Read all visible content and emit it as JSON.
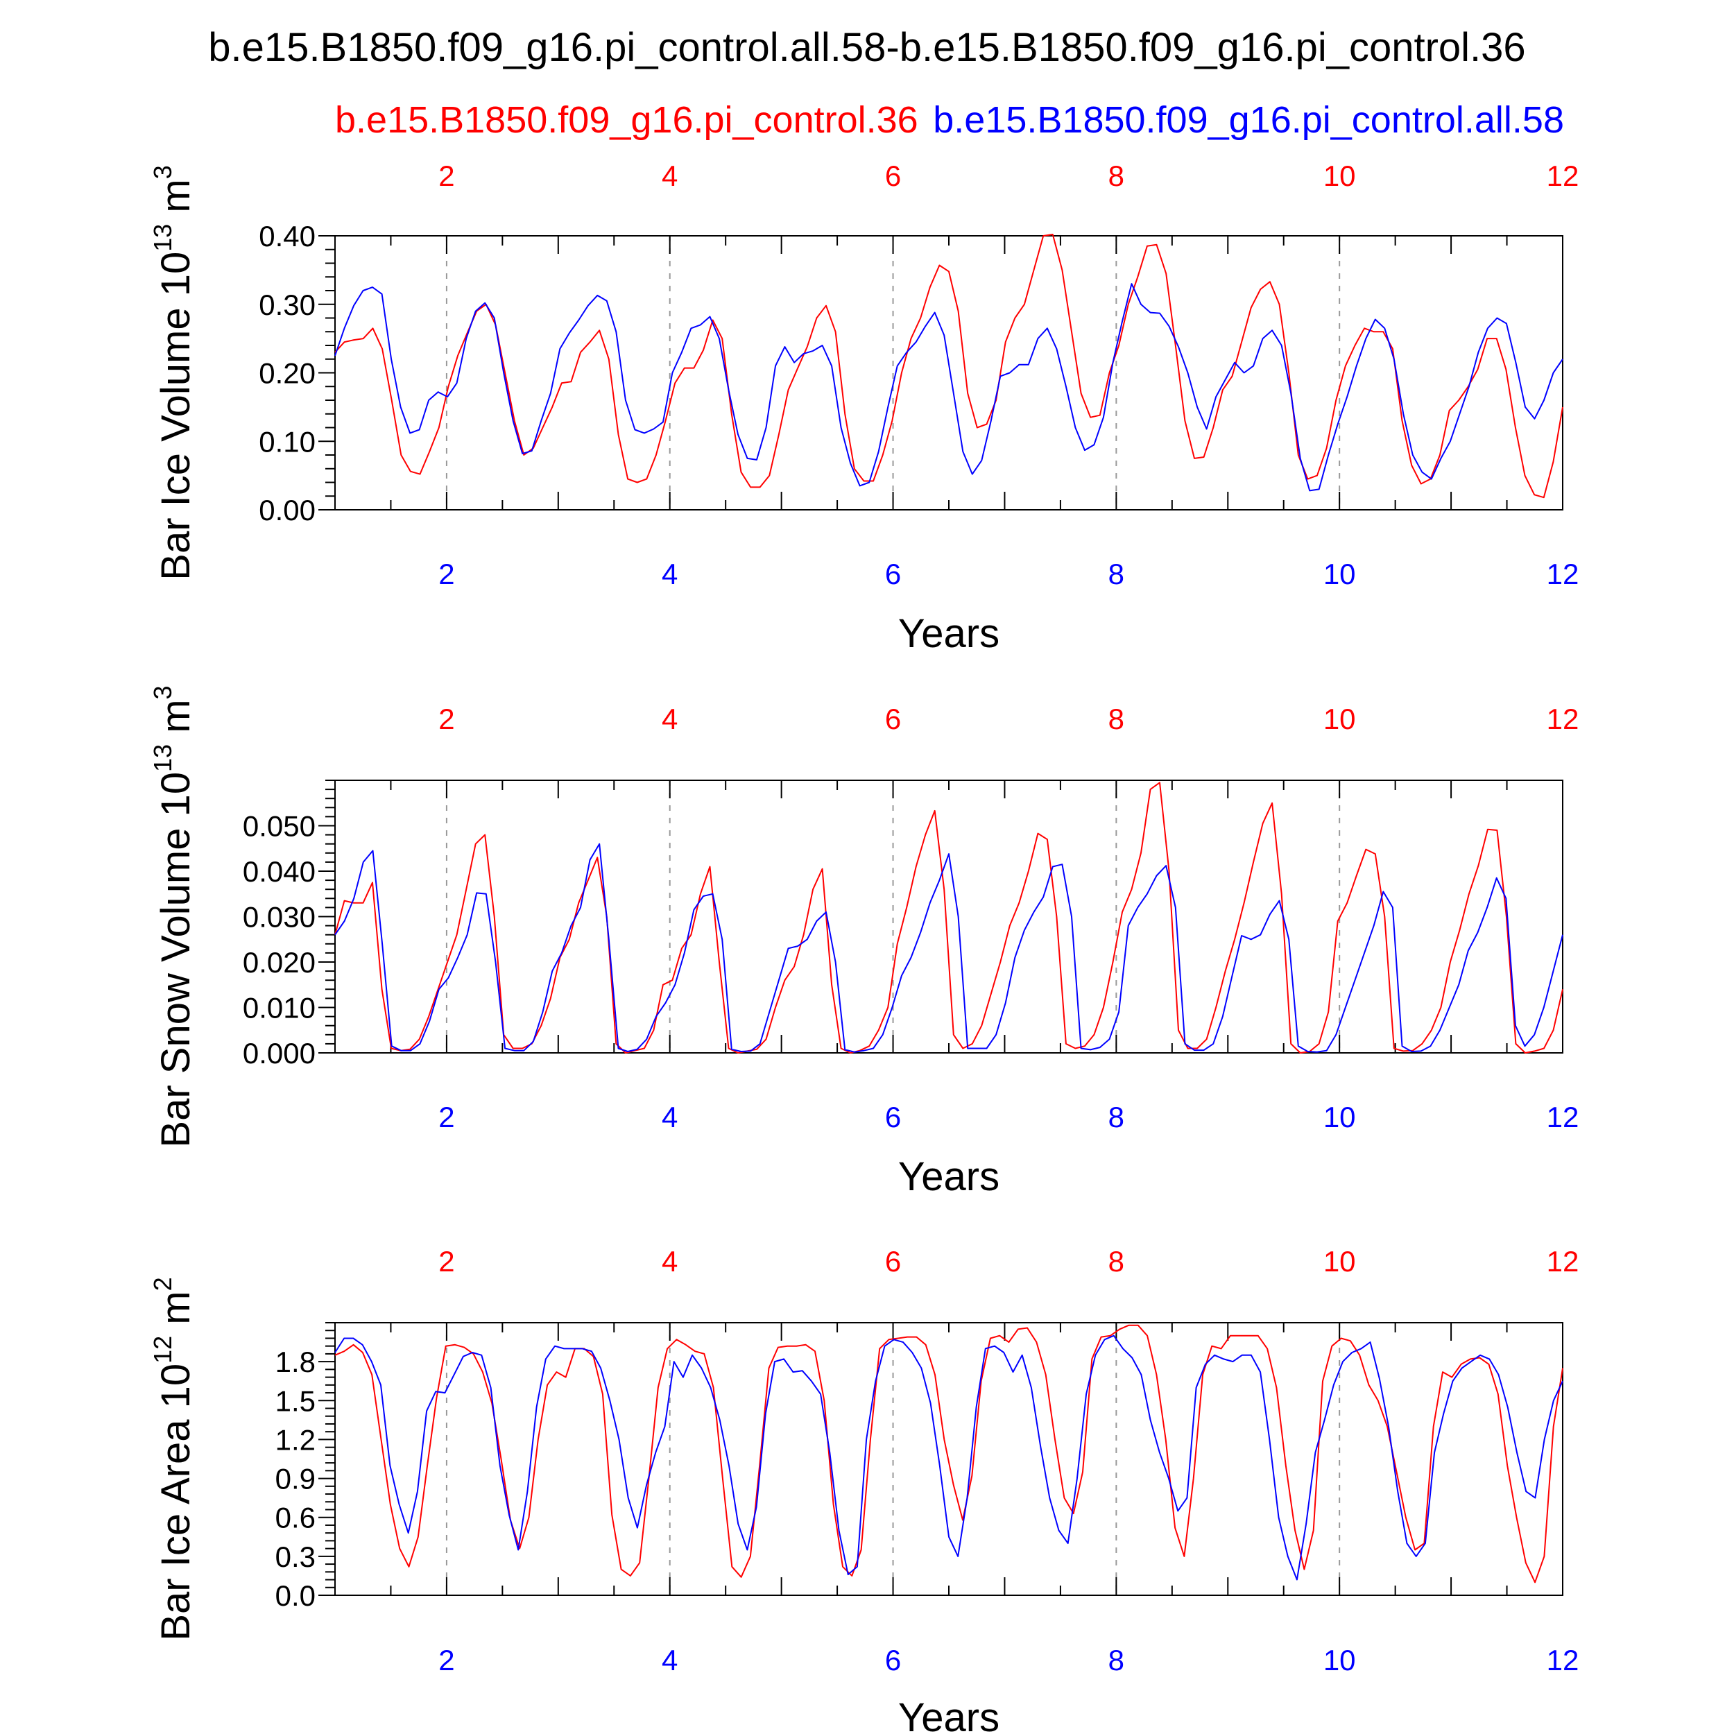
{
  "main_title": "b.e15.B1850.f09_g16.pi_control.all.58-b.e15.B1850.f09_g16.pi_control.36",
  "legend": {
    "red_label": "b.e15.B1850.f09_g16.pi_control.36",
    "blue_label": "b.e15.B1850.f09_g16.pi_control.all.58",
    "red_color": "#ff0000",
    "blue_color": "#0000ff"
  },
  "chart_data": [
    {
      "type": "line",
      "ylabel": "Bar Ice Volume 10",
      "ylabel_exp": "13",
      "ylabel_unit": " m",
      "ylabel_unit_exp": "3",
      "xlabel": "Years",
      "xlim": [
        1,
        12
      ],
      "ylim": [
        0,
        0.4
      ],
      "yticks": [
        0,
        0.1,
        0.2,
        0.3,
        0.4
      ],
      "ytick_labels": [
        "0.00",
        "0.10",
        "0.20",
        "0.30",
        "0.40"
      ],
      "xticks": [
        2,
        4,
        6,
        8,
        10,
        12
      ],
      "xtick_labels": [
        "2",
        "4",
        "6",
        "8",
        "10",
        "12"
      ],
      "series": [
        {
          "name": "b.e15.B1850.f09_g16.pi_control.36",
          "color": "#ff0000",
          "values": [
            0.23,
            0.245,
            0.248,
            0.25,
            0.265,
            0.235,
            0.16,
            0.08,
            0.056,
            0.052,
            0.085,
            0.12,
            0.18,
            0.225,
            0.258,
            0.29,
            0.3,
            0.27,
            0.2,
            0.13,
            0.08,
            0.09,
            0.12,
            0.15,
            0.185,
            0.187,
            0.23,
            0.245,
            0.262,
            0.22,
            0.11,
            0.045,
            0.04,
            0.045,
            0.08,
            0.13,
            0.185,
            0.207,
            0.207,
            0.233,
            0.277,
            0.25,
            0.14,
            0.055,
            0.033,
            0.033,
            0.05,
            0.11,
            0.175,
            0.207,
            0.238,
            0.28,
            0.298,
            0.26,
            0.14,
            0.06,
            0.042,
            0.042,
            0.08,
            0.13,
            0.2,
            0.25,
            0.28,
            0.325,
            0.357,
            0.348,
            0.29,
            0.17,
            0.12,
            0.125,
            0.16,
            0.245,
            0.28,
            0.3,
            0.35,
            0.4,
            0.402,
            0.35,
            0.26,
            0.17,
            0.135,
            0.138,
            0.2,
            0.24,
            0.3,
            0.34,
            0.385,
            0.387,
            0.345,
            0.24,
            0.13,
            0.075,
            0.077,
            0.12,
            0.175,
            0.195,
            0.245,
            0.295,
            0.322,
            0.333,
            0.3,
            0.2,
            0.08,
            0.045,
            0.05,
            0.09,
            0.16,
            0.21,
            0.24,
            0.265,
            0.26,
            0.26,
            0.235,
            0.13,
            0.065,
            0.038,
            0.045,
            0.08,
            0.145,
            0.16,
            0.18,
            0.205,
            0.25,
            0.25,
            0.205,
            0.12,
            0.05,
            0.022,
            0.018,
            0.07,
            0.15
          ]
        },
        {
          "name": "b.e15.B1850.f09_g16.pi_control.all.58",
          "color": "#0000ff",
          "values": [
            0.225,
            0.265,
            0.298,
            0.32,
            0.325,
            0.315,
            0.22,
            0.15,
            0.112,
            0.117,
            0.16,
            0.172,
            0.165,
            0.185,
            0.25,
            0.29,
            0.302,
            0.28,
            0.2,
            0.13,
            0.082,
            0.086,
            0.13,
            0.17,
            0.235,
            0.258,
            0.277,
            0.298,
            0.313,
            0.305,
            0.26,
            0.16,
            0.117,
            0.112,
            0.118,
            0.128,
            0.2,
            0.23,
            0.265,
            0.27,
            0.282,
            0.25,
            0.175,
            0.11,
            0.075,
            0.073,
            0.12,
            0.21,
            0.238,
            0.215,
            0.228,
            0.232,
            0.24,
            0.21,
            0.12,
            0.068,
            0.035,
            0.04,
            0.085,
            0.15,
            0.21,
            0.23,
            0.245,
            0.268,
            0.288,
            0.255,
            0.17,
            0.085,
            0.052,
            0.072,
            0.13,
            0.195,
            0.2,
            0.212,
            0.212,
            0.25,
            0.265,
            0.235,
            0.18,
            0.12,
            0.087,
            0.095,
            0.135,
            0.215,
            0.275,
            0.33,
            0.3,
            0.288,
            0.287,
            0.268,
            0.238,
            0.2,
            0.15,
            0.118,
            0.165,
            0.19,
            0.215,
            0.2,
            0.21,
            0.25,
            0.262,
            0.24,
            0.17,
            0.075,
            0.028,
            0.03,
            0.08,
            0.125,
            0.165,
            0.21,
            0.25,
            0.278,
            0.265,
            0.22,
            0.14,
            0.08,
            0.055,
            0.045,
            0.075,
            0.1,
            0.14,
            0.18,
            0.23,
            0.265,
            0.28,
            0.272,
            0.215,
            0.15,
            0.133,
            0.16,
            0.2,
            0.22
          ]
        }
      ]
    },
    {
      "type": "line",
      "ylabel": "Bar Snow Volume 10",
      "ylabel_exp": "13",
      "ylabel_unit": " m",
      "ylabel_unit_exp": "3",
      "xlabel": "Years",
      "xlim": [
        1,
        12
      ],
      "ylim": [
        0,
        0.06
      ],
      "yticks": [
        0,
        0.01,
        0.02,
        0.03,
        0.04,
        0.05
      ],
      "ytick_labels": [
        "0.000",
        "0.010",
        "0.020",
        "0.030",
        "0.040",
        "0.050"
      ],
      "xticks": [
        2,
        4,
        6,
        8,
        10,
        12
      ],
      "xtick_labels": [
        "2",
        "4",
        "6",
        "8",
        "10",
        "12"
      ],
      "series": [
        {
          "name": "b.e15.B1850.f09_g16.pi_control.36",
          "color": "#ff0000",
          "values": [
            0.026,
            0.0335,
            0.033,
            0.033,
            0.0375,
            0.014,
            0.001,
            0.0005,
            0.0008,
            0.003,
            0.008,
            0.014,
            0.02,
            0.026,
            0.036,
            0.046,
            0.048,
            0.03,
            0.004,
            0.001,
            0.001,
            0.002,
            0.006,
            0.012,
            0.021,
            0.025,
            0.033,
            0.038,
            0.043,
            0.03,
            0.002,
            0.0,
            0.0005,
            0.001,
            0.005,
            0.015,
            0.016,
            0.023,
            0.026,
            0.035,
            0.041,
            0.02,
            0.001,
            0.0,
            0.0004,
            0.0008,
            0.003,
            0.01,
            0.016,
            0.019,
            0.026,
            0.036,
            0.0405,
            0.015,
            0.001,
            0.0,
            0.0005,
            0.0015,
            0.005,
            0.01,
            0.024,
            0.032,
            0.041,
            0.048,
            0.0533,
            0.036,
            0.004,
            0.001,
            0.002,
            0.006,
            0.013,
            0.02,
            0.028,
            0.033,
            0.04,
            0.0483,
            0.047,
            0.03,
            0.002,
            0.001,
            0.0015,
            0.004,
            0.01,
            0.02,
            0.031,
            0.036,
            0.044,
            0.058,
            0.0595,
            0.04,
            0.005,
            0.001,
            0.001,
            0.003,
            0.01,
            0.018,
            0.025,
            0.033,
            0.042,
            0.0505,
            0.055,
            0.035,
            0.002,
            0.0,
            0.0003,
            0.002,
            0.009,
            0.029,
            0.033,
            0.039,
            0.0448,
            0.0438,
            0.03,
            0.001,
            0.0004,
            0.0005,
            0.002,
            0.005,
            0.01,
            0.02,
            0.027,
            0.035,
            0.0412,
            0.0492,
            0.049,
            0.03,
            0.002,
            0.0,
            0.0004,
            0.001,
            0.005,
            0.014
          ]
        },
        {
          "name": "b.e15.B1850.f09_g16.pi_control.all.58",
          "color": "#0000ff",
          "values": [
            0.026,
            0.029,
            0.034,
            0.042,
            0.0445,
            0.024,
            0.0015,
            0.0005,
            0.0005,
            0.002,
            0.007,
            0.014,
            0.0165,
            0.021,
            0.026,
            0.0352,
            0.035,
            0.02,
            0.001,
            0.0005,
            0.0005,
            0.0025,
            0.009,
            0.018,
            0.022,
            0.028,
            0.032,
            0.0425,
            0.046,
            0.025,
            0.001,
            0.0003,
            0.0008,
            0.003,
            0.008,
            0.011,
            0.015,
            0.022,
            0.0315,
            0.0345,
            0.035,
            0.025,
            0.0008,
            0.0003,
            0.0004,
            0.002,
            0.009,
            0.016,
            0.023,
            0.0235,
            0.025,
            0.029,
            0.031,
            0.02,
            0.0007,
            0.0002,
            0.0005,
            0.001,
            0.004,
            0.01,
            0.017,
            0.021,
            0.0265,
            0.033,
            0.038,
            0.0438,
            0.03,
            0.001,
            0.001,
            0.001,
            0.004,
            0.011,
            0.021,
            0.027,
            0.031,
            0.0343,
            0.041,
            0.0415,
            0.03,
            0.001,
            0.0007,
            0.0012,
            0.003,
            0.009,
            0.028,
            0.032,
            0.035,
            0.039,
            0.0412,
            0.032,
            0.002,
            0.0006,
            0.0006,
            0.002,
            0.008,
            0.017,
            0.0258,
            0.025,
            0.026,
            0.0305,
            0.0335,
            0.025,
            0.0015,
            0.0003,
            0.0002,
            0.0005,
            0.004,
            0.01,
            0.016,
            0.022,
            0.028,
            0.0355,
            0.032,
            0.0015,
            0.0003,
            0.0004,
            0.0015,
            0.005,
            0.01,
            0.015,
            0.0225,
            0.0265,
            0.032,
            0.0385,
            0.034,
            0.006,
            0.0015,
            0.004,
            0.01,
            0.018,
            0.026
          ]
        }
      ]
    },
    {
      "type": "line",
      "ylabel": "Bar Ice Area 10",
      "ylabel_exp": "12",
      "ylabel_unit": " m",
      "ylabel_unit_exp": "2",
      "xlabel": "Years",
      "xlim": [
        1,
        12
      ],
      "ylim": [
        0,
        2.1
      ],
      "yticks": [
        0,
        0.3,
        0.6,
        0.9,
        1.2,
        1.5,
        1.8
      ],
      "ytick_labels": [
        "0.0",
        "0.3",
        "0.6",
        "0.9",
        "1.2",
        "1.5",
        "1.8"
      ],
      "xticks": [
        2,
        4,
        6,
        8,
        10,
        12
      ],
      "xtick_labels": [
        "2",
        "4",
        "6",
        "8",
        "10",
        "12"
      ],
      "series": [
        {
          "name": "b.e15.B1850.f09_g16.pi_control.36",
          "color": "#ff0000",
          "values": [
            1.85,
            1.88,
            1.93,
            1.87,
            1.7,
            1.2,
            0.7,
            0.36,
            0.22,
            0.45,
            1.0,
            1.52,
            1.92,
            1.93,
            1.91,
            1.86,
            1.72,
            1.48,
            1.05,
            0.58,
            0.36,
            0.6,
            1.2,
            1.62,
            1.72,
            1.68,
            1.9,
            1.9,
            1.84,
            1.55,
            0.62,
            0.2,
            0.15,
            0.25,
            0.9,
            1.6,
            1.9,
            1.97,
            1.93,
            1.88,
            1.86,
            1.6,
            0.9,
            0.22,
            0.14,
            0.3,
            1.0,
            1.75,
            1.91,
            1.92,
            1.92,
            1.93,
            1.88,
            1.5,
            0.7,
            0.22,
            0.15,
            0.35,
            1.2,
            1.9,
            1.97,
            1.98,
            1.99,
            1.99,
            1.93,
            1.7,
            1.2,
            0.85,
            0.58,
            0.92,
            1.65,
            1.98,
            2.0,
            1.95,
            2.05,
            2.06,
            1.95,
            1.7,
            1.2,
            0.75,
            0.63,
            0.95,
            1.82,
            1.99,
            2.0,
            2.05,
            2.08,
            2.08,
            2.0,
            1.7,
            1.2,
            0.52,
            0.3,
            0.9,
            1.7,
            1.92,
            1.9,
            2.0,
            2.0,
            2.0,
            2.0,
            1.9,
            1.6,
            1.0,
            0.5,
            0.2,
            0.5,
            1.65,
            1.92,
            1.98,
            1.96,
            1.85,
            1.62,
            1.5,
            1.3,
            0.95,
            0.6,
            0.35,
            0.4,
            1.3,
            1.72,
            1.68,
            1.78,
            1.82,
            1.83,
            1.78,
            1.55,
            1.0,
            0.6,
            0.25,
            0.1,
            0.3,
            1.3,
            1.75
          ]
        },
        {
          "name": "b.e15.B1850.f09_g16.pi_control.all.58",
          "color": "#0000ff",
          "values": [
            1.87,
            1.98,
            1.98,
            1.93,
            1.8,
            1.62,
            1.0,
            0.7,
            0.48,
            0.8,
            1.42,
            1.57,
            1.56,
            1.7,
            1.84,
            1.87,
            1.85,
            1.6,
            1.0,
            0.62,
            0.35,
            0.8,
            1.45,
            1.82,
            1.92,
            1.9,
            1.9,
            1.9,
            1.88,
            1.75,
            1.5,
            1.2,
            0.75,
            0.52,
            0.85,
            1.1,
            1.3,
            1.8,
            1.68,
            1.85,
            1.75,
            1.6,
            1.35,
            1.0,
            0.55,
            0.35,
            0.68,
            1.4,
            1.8,
            1.82,
            1.72,
            1.73,
            1.65,
            1.55,
            1.1,
            0.5,
            0.16,
            0.22,
            1.2,
            1.65,
            1.92,
            1.97,
            1.95,
            1.87,
            1.75,
            1.48,
            1.0,
            0.45,
            0.3,
            0.75,
            1.45,
            1.9,
            1.92,
            1.87,
            1.72,
            1.85,
            1.6,
            1.15,
            0.75,
            0.5,
            0.4,
            0.9,
            1.55,
            1.85,
            1.97,
            2.0,
            1.9,
            1.83,
            1.7,
            1.35,
            1.1,
            0.9,
            0.65,
            0.75,
            1.6,
            1.78,
            1.85,
            1.82,
            1.8,
            1.85,
            1.85,
            1.72,
            1.2,
            0.6,
            0.3,
            0.12,
            0.55,
            1.1,
            1.35,
            1.62,
            1.8,
            1.87,
            1.9,
            1.95,
            1.67,
            1.3,
            0.8,
            0.4,
            0.3,
            0.4,
            1.1,
            1.4,
            1.65,
            1.75,
            1.8,
            1.85,
            1.82,
            1.7,
            1.45,
            1.1,
            0.8,
            0.75,
            1.2,
            1.5,
            1.65
          ]
        }
      ]
    }
  ]
}
